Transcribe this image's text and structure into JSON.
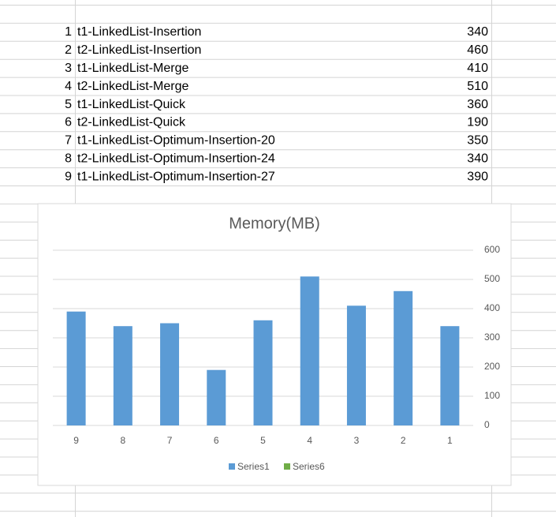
{
  "table": {
    "rows": [
      [
        1,
        "t1-LinkedList-Insertion",
        340
      ],
      [
        2,
        "t2-LinkedList-Insertion",
        460
      ],
      [
        3,
        "t1-LinkedList-Merge",
        410
      ],
      [
        4,
        "t2-LinkedList-Merge",
        510
      ],
      [
        5,
        "t1-LinkedList-Quick",
        360
      ],
      [
        6,
        "t2-LinkedList-Quick",
        190
      ],
      [
        7,
        "t1-LinkedList-Optimum-Insertion-20",
        350
      ],
      [
        8,
        "t2-LinkedList-Optimum-Insertion-24",
        340
      ],
      [
        9,
        "t1-LinkedList-Optimum-Insertion-27",
        390
      ]
    ]
  },
  "chart_data": {
    "type": "bar",
    "title": "Memory(MB)",
    "categories": [
      "9",
      "8",
      "7",
      "6",
      "5",
      "4",
      "3",
      "2",
      "1"
    ],
    "series": [
      {
        "name": "Series1",
        "color": "#5b9bd5",
        "values": [
          390,
          340,
          350,
          190,
          360,
          510,
          410,
          460,
          340
        ]
      },
      {
        "name": "Series6",
        "color": "#70ad47",
        "values": [
          null,
          null,
          null,
          null,
          null,
          null,
          null,
          null,
          null
        ]
      }
    ],
    "ylim": [
      0,
      600
    ],
    "yticks": [
      0,
      100,
      200,
      300,
      400,
      500,
      600
    ],
    "grid": true,
    "y_axis_side": "right",
    "legend": "bottom"
  }
}
